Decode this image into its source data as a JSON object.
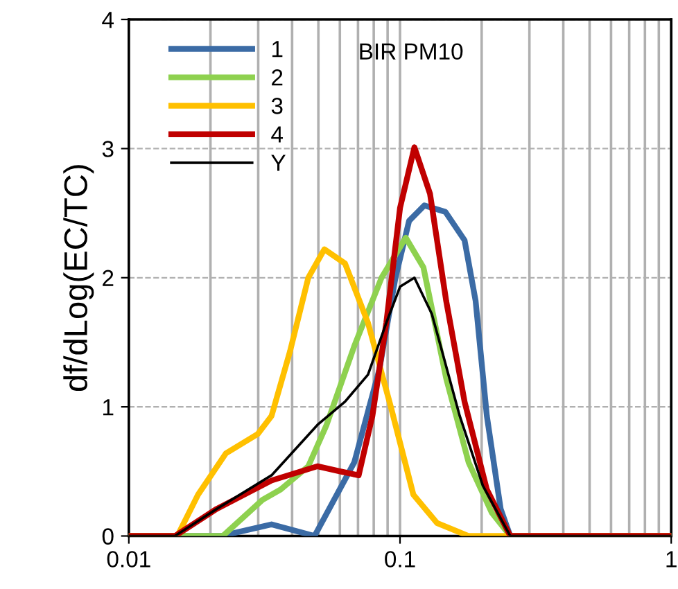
{
  "chart_data": {
    "type": "line",
    "ylabel": "df/dLog(EC/TC)",
    "annotations": [
      "BIR PM10"
    ],
    "xlim": [
      0.01,
      1
    ],
    "xticks": [
      0.01,
      0.1,
      1
    ],
    "ylim": [
      0,
      4
    ],
    "yticks": [
      0,
      1,
      2,
      3,
      4
    ],
    "log": "x",
    "grid": true,
    "legend": "top left",
    "marker": "none",
    "line_style": "solid",
    "series": [
      {
        "name": "1",
        "color": "#3b6ba5",
        "x": [
          0.01,
          0.0219,
          0.0336,
          0.0484,
          0.0678,
          0.0839,
          0.0962,
          0.108,
          0.123,
          0.147,
          0.173,
          0.19,
          0.209,
          0.235,
          0.255,
          1
        ],
        "values": [
          0,
          0,
          0.09,
          0,
          0.57,
          1.29,
          2.0,
          2.44,
          2.56,
          2.51,
          2.29,
          1.82,
          0.93,
          0.21,
          0,
          0
        ]
      },
      {
        "name": "2",
        "color": "#8ed14f",
        "x": [
          0.01,
          0.0222,
          0.0311,
          0.0363,
          0.0459,
          0.0536,
          0.0678,
          0.0855,
          0.105,
          0.122,
          0.148,
          0.179,
          0.218,
          0.255,
          1
        ],
        "values": [
          0,
          0,
          0.28,
          0.36,
          0.54,
          0.86,
          1.47,
          2.0,
          2.31,
          2.08,
          1.22,
          0.57,
          0.18,
          0,
          0
        ]
      },
      {
        "name": "3",
        "color": "#ffc000",
        "x": [
          0.01,
          0.0151,
          0.018,
          0.0228,
          0.0299,
          0.0336,
          0.0393,
          0.0459,
          0.0526,
          0.0627,
          0.0762,
          0.0925,
          0.112,
          0.137,
          0.179,
          1
        ],
        "values": [
          0,
          0,
          0.32,
          0.64,
          0.79,
          0.93,
          1.43,
          2.0,
          2.22,
          2.11,
          1.65,
          1.0,
          0.32,
          0.1,
          0,
          0
        ]
      },
      {
        "name": "4",
        "color": "#c00000",
        "x": [
          0.01,
          0.0148,
          0.0211,
          0.0336,
          0.0496,
          0.0603,
          0.0704,
          0.0791,
          0.089,
          0.1,
          0.113,
          0.129,
          0.148,
          0.173,
          0.209,
          0.255,
          1
        ],
        "values": [
          0,
          0,
          0.21,
          0.43,
          0.54,
          0.5,
          0.47,
          0.93,
          1.65,
          2.54,
          3.01,
          2.65,
          1.82,
          1.04,
          0.36,
          0,
          0
        ]
      },
      {
        "name": "Y",
        "color": "#000000",
        "x": [
          0.01,
          0.0148,
          0.0211,
          0.0336,
          0.0496,
          0.0627,
          0.0762,
          0.089,
          0.1,
          0.113,
          0.131,
          0.166,
          0.202,
          0.255,
          1
        ],
        "values": [
          0,
          0,
          0.21,
          0.47,
          0.86,
          1.04,
          1.25,
          1.65,
          1.93,
          2.0,
          1.72,
          0.93,
          0.39,
          0,
          0
        ]
      }
    ]
  }
}
